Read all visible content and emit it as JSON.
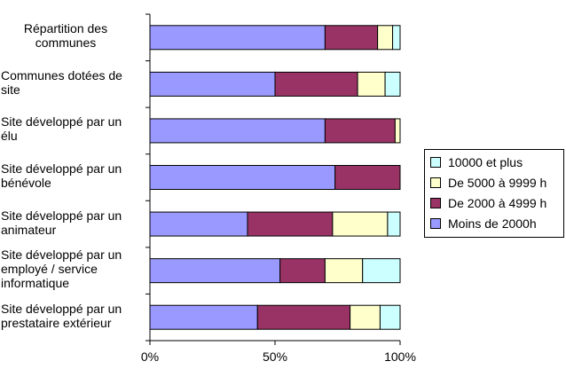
{
  "chart_data": {
    "type": "bar",
    "orientation": "horizontal",
    "stacked": "percent",
    "categories": [
      "Répartition des communes",
      "Communes dotées de site",
      "Site développé par un élu",
      "Site développé par un bénévole",
      "Site développé par un animateur",
      "Site développé par un employé / service informatique",
      "Site développé par un prestataire extérieur"
    ],
    "series": [
      {
        "name": "Moins de 2000h",
        "color": "#9999ff",
        "values": [
          70,
          50,
          70,
          74,
          39,
          52,
          43
        ]
      },
      {
        "name": "De 2000 à 4999 h",
        "color": "#993366",
        "values": [
          21,
          33,
          28,
          26,
          34,
          18,
          37
        ]
      },
      {
        "name": "De 5000 à 9999 h",
        "color": "#ffffcc",
        "values": [
          6,
          11,
          2,
          0,
          22,
          15,
          12
        ]
      },
      {
        "name": "10000 et plus",
        "color": "#ccffff",
        "values": [
          3,
          6,
          0,
          0,
          5,
          15,
          8
        ]
      }
    ],
    "xlim": [
      0,
      100
    ],
    "xticks": [
      "0%",
      "50%",
      "100%"
    ],
    "legend_order": [
      "10000 et plus",
      "De 5000 à 9999 h",
      "De 2000 à 4999 h",
      "Moins de 2000h"
    ],
    "legend_position": "right",
    "grid": false
  }
}
